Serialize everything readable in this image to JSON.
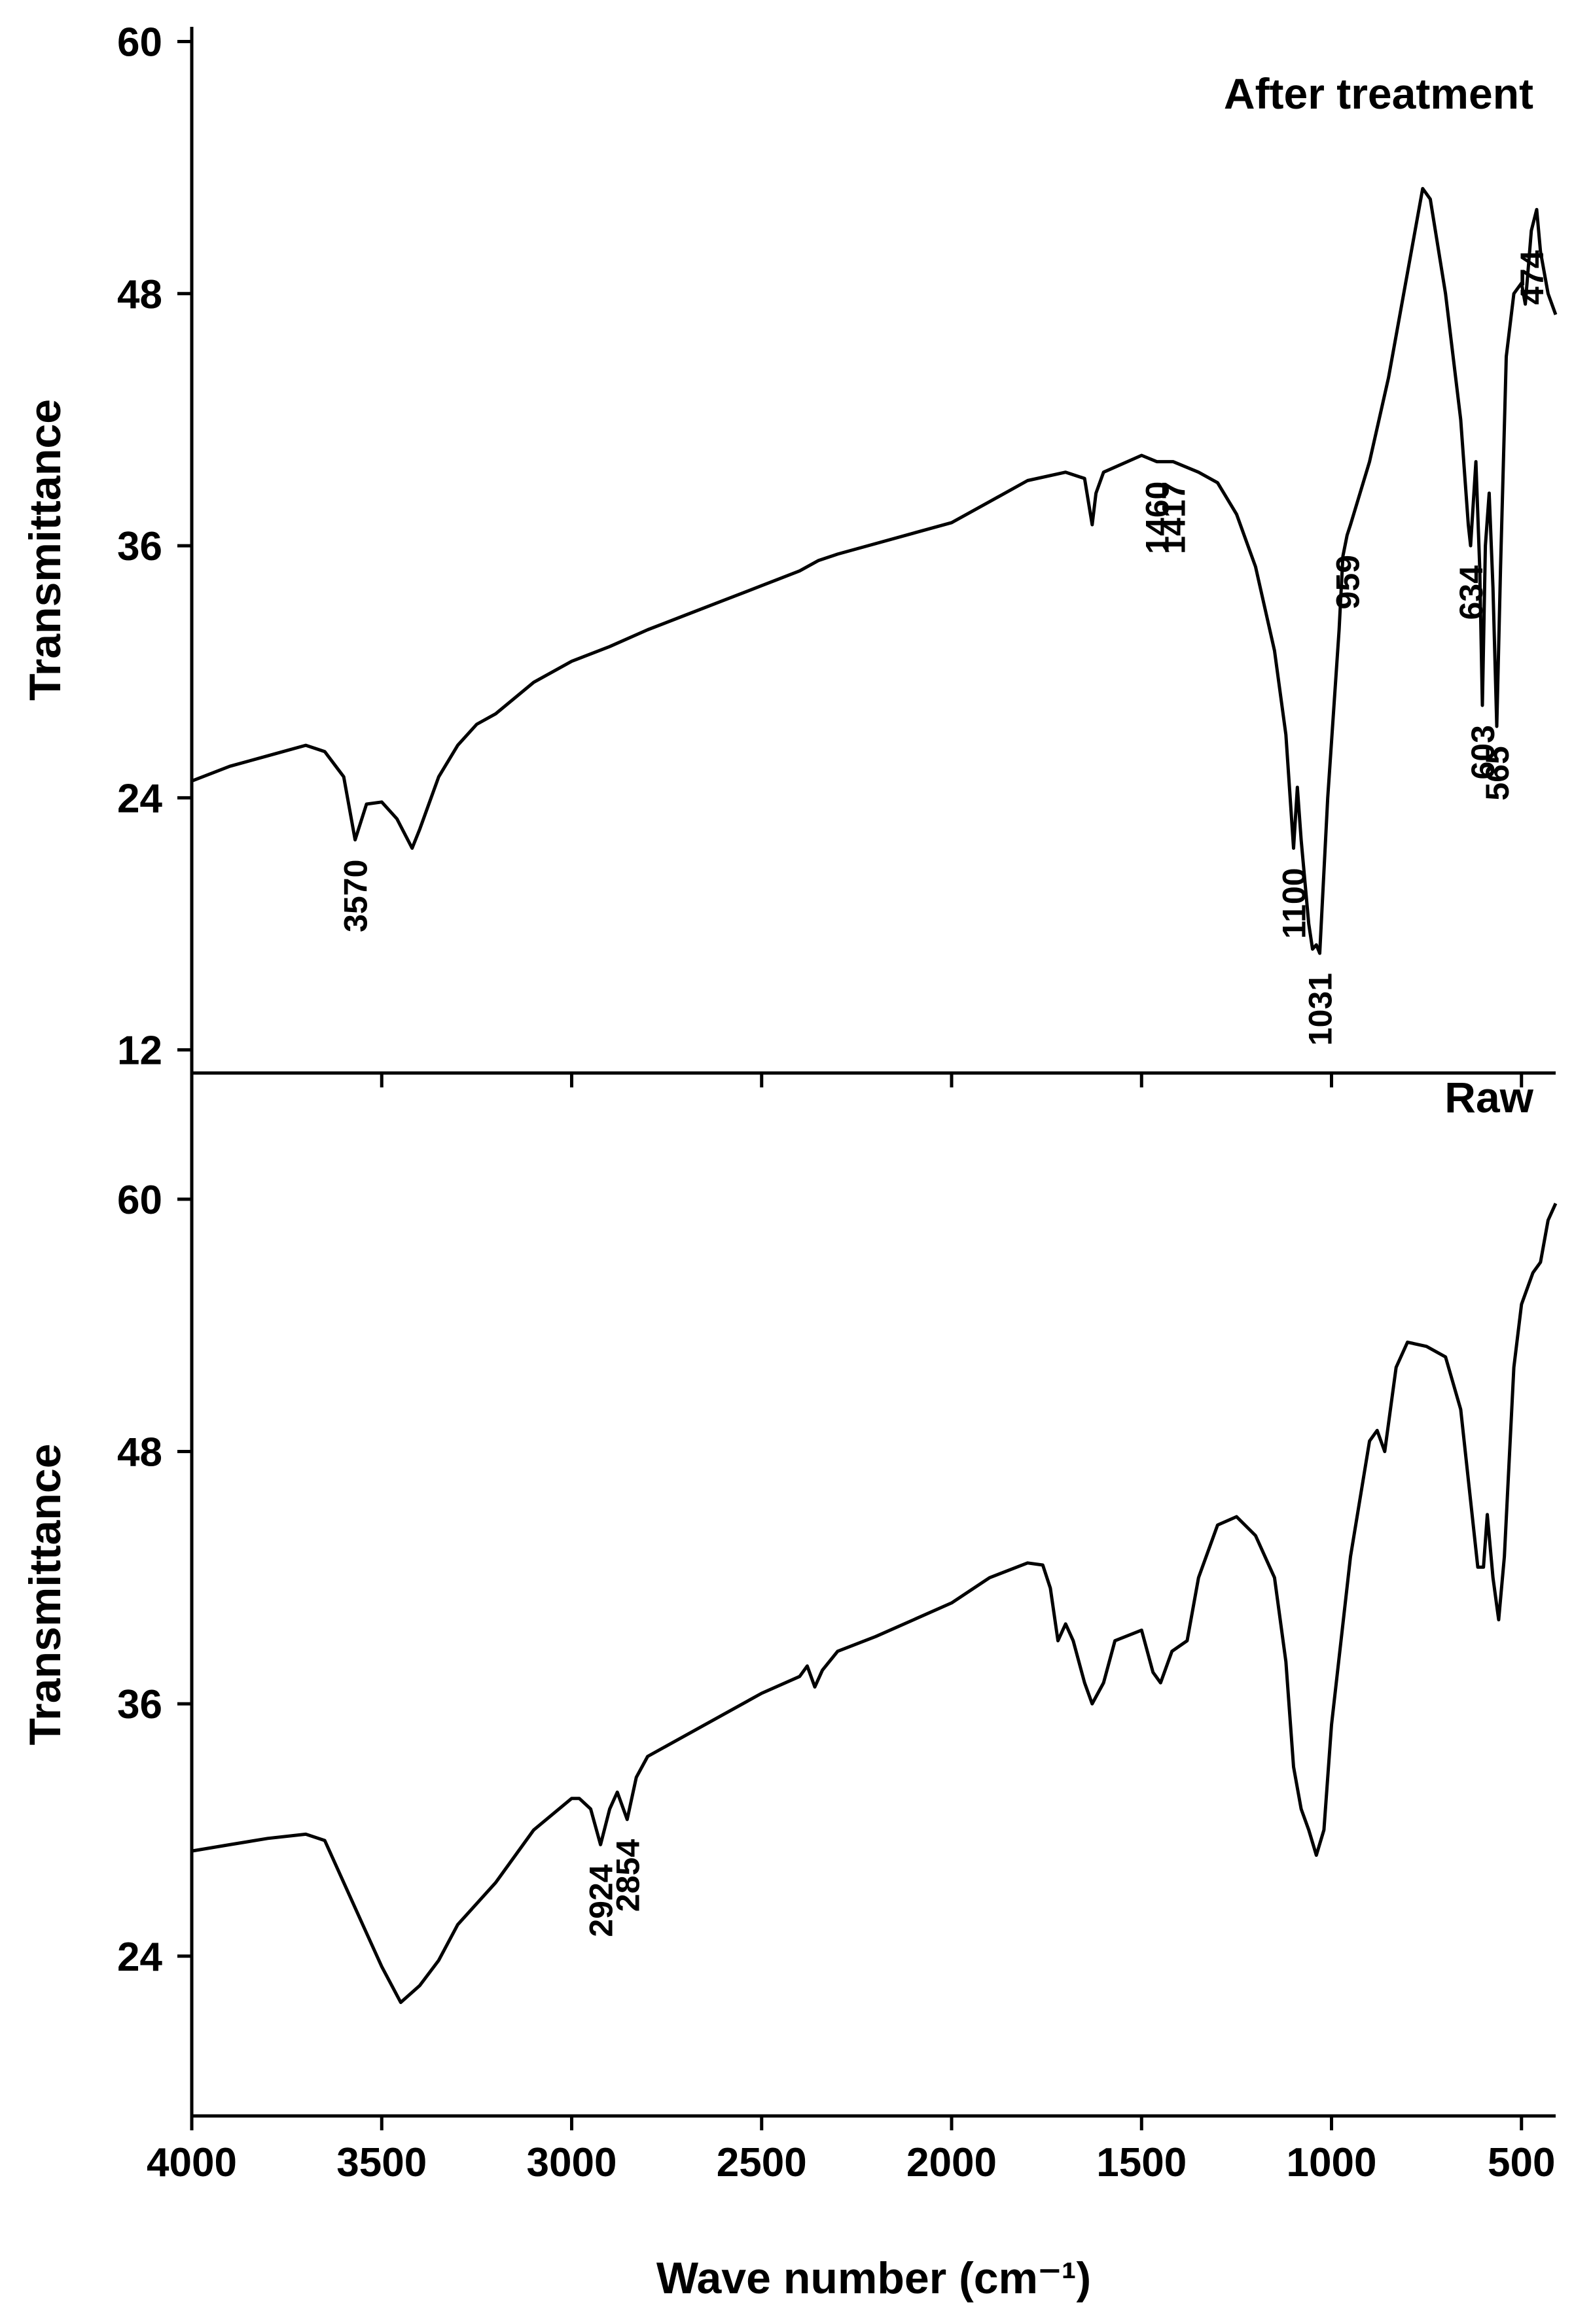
{
  "chart_data": [
    {
      "type": "line",
      "title": "After treatment",
      "y_label": "Transmittance",
      "xlim": [
        4000,
        410
      ],
      "ylim": [
        10.9,
        60.7
      ],
      "yticks": [
        12,
        24,
        36,
        48,
        60
      ],
      "x": [
        4000,
        3900,
        3800,
        3700,
        3650,
        3600,
        3570,
        3540,
        3500,
        3460,
        3420,
        3400,
        3350,
        3300,
        3250,
        3200,
        3100,
        3000,
        2900,
        2800,
        2700,
        2600,
        2500,
        2400,
        2350,
        2300,
        2200,
        2100,
        2000,
        1900,
        1800,
        1700,
        1650,
        1630,
        1620,
        1600,
        1500,
        1460,
        1417,
        1350,
        1300,
        1250,
        1200,
        1150,
        1120,
        1100,
        1090,
        1080,
        1060,
        1050,
        1040,
        1031,
        1010,
        980,
        970,
        959,
        950,
        900,
        850,
        800,
        760,
        740,
        700,
        660,
        640,
        634,
        620,
        610,
        603,
        595,
        585,
        575,
        565,
        555,
        540,
        520,
        500,
        490,
        474,
        460,
        450,
        430,
        410
      ],
      "series": [
        {
          "name": "After treatment",
          "color": "#000000",
          "values": [
            24.8,
            25.5,
            26,
            26.5,
            26.2,
            25,
            22,
            23.7,
            23.8,
            23,
            21.6,
            22.5,
            25,
            26.5,
            27.5,
            28,
            29.5,
            30.5,
            31.2,
            32,
            32.7,
            33.4,
            34.1,
            34.8,
            35.3,
            35.6,
            36.1,
            36.6,
            37.1,
            38.1,
            39.1,
            39.5,
            39.2,
            37,
            38.5,
            39.5,
            40.3,
            40,
            40,
            39.5,
            39,
            37.5,
            35,
            31,
            27,
            21.6,
            24.5,
            22,
            18,
            16.8,
            17,
            16.6,
            24,
            32,
            35.5,
            36.5,
            37,
            40,
            44,
            49,
            53,
            52.5,
            48,
            42,
            37,
            36,
            40,
            35,
            28.4,
            36,
            38.5,
            34,
            27.4,
            35,
            45,
            48,
            48.5,
            47.5,
            51,
            52,
            50,
            48,
            47
          ]
        }
      ],
      "annotations": [
        3570,
        1460,
        1417,
        1100,
        1031,
        959,
        634,
        603,
        565,
        474
      ]
    },
    {
      "type": "line",
      "title": "Raw",
      "y_label": "Transmittance",
      "x_label": "Wave number (cm⁻¹)",
      "xlim": [
        4000,
        410
      ],
      "ylim": [
        16.4,
        66
      ],
      "yticks": [
        24,
        36,
        48,
        60
      ],
      "xticks": [
        4000,
        3500,
        3000,
        2500,
        2000,
        1500,
        1000,
        500
      ],
      "x": [
        4000,
        3900,
        3800,
        3700,
        3650,
        3600,
        3550,
        3500,
        3450,
        3400,
        3350,
        3300,
        3200,
        3100,
        3000,
        2980,
        2950,
        2924,
        2900,
        2880,
        2854,
        2830,
        2800,
        2700,
        2600,
        2500,
        2400,
        2380,
        2360,
        2340,
        2300,
        2200,
        2100,
        2000,
        1900,
        1800,
        1760,
        1740,
        1720,
        1700,
        1680,
        1650,
        1630,
        1600,
        1570,
        1500,
        1470,
        1450,
        1420,
        1380,
        1350,
        1300,
        1250,
        1200,
        1150,
        1120,
        1100,
        1080,
        1060,
        1040,
        1020,
        1000,
        950,
        900,
        880,
        860,
        830,
        800,
        750,
        700,
        660,
        630,
        615,
        600,
        590,
        575,
        560,
        545,
        520,
        500,
        470,
        450,
        430,
        410
      ],
      "series": [
        {
          "name": "Raw",
          "color": "#000000",
          "values": [
            29,
            29.3,
            29.6,
            29.8,
            29.5,
            27.5,
            25.5,
            23.5,
            21.8,
            22.6,
            23.8,
            25.5,
            27.5,
            30,
            31.5,
            31.5,
            31,
            29.3,
            31,
            31.8,
            30.5,
            32.5,
            33.5,
            34.5,
            35.5,
            36.5,
            37.3,
            37.8,
            36.8,
            37.6,
            38.5,
            39.2,
            40,
            40.8,
            42,
            42.7,
            42.6,
            41.5,
            39,
            39.8,
            39,
            37,
            36,
            37,
            39,
            39.5,
            37.5,
            37,
            38.5,
            39,
            42,
            44.5,
            44.9,
            44,
            42,
            38,
            33,
            31,
            30,
            28.8,
            30,
            35,
            43,
            48.5,
            49,
            48,
            52,
            53.2,
            53,
            52.5,
            50,
            45,
            42.5,
            42.5,
            45,
            42,
            40,
            43,
            52,
            55,
            56.5,
            57,
            59,
            59.8
          ]
        }
      ],
      "annotations": [
        2924,
        2854
      ]
    }
  ]
}
